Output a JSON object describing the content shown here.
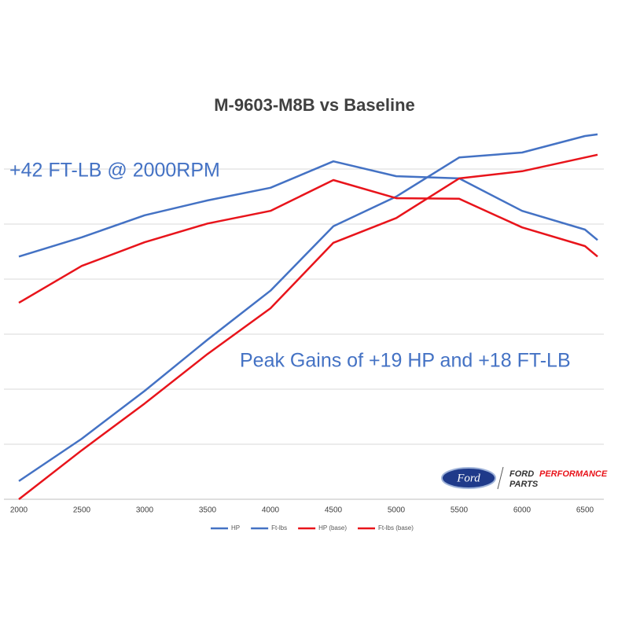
{
  "chart_data": {
    "type": "line",
    "title": "M-9603-M8B vs Baseline",
    "annotations": [
      "+42 FT-LB @ 2000RPM",
      "Peak Gains of +19 HP and +18 FT-LB"
    ],
    "x": [
      2000,
      2500,
      3000,
      3500,
      4000,
      4500,
      5000,
      5500,
      6000,
      6500,
      6600
    ],
    "xlim": [
      2000,
      6650
    ],
    "xticks": [
      2000,
      2500,
      3000,
      3500,
      4000,
      4500,
      5000,
      5500,
      6000,
      6500
    ],
    "ylim": [
      0,
      7
    ],
    "yticks": [
      0,
      1,
      2,
      3,
      4,
      5,
      6
    ],
    "ytick_labels": false,
    "grid": true,
    "legend": "bottom",
    "series": [
      {
        "name": "HP",
        "color": "#4472c4",
        "values": [
          0.33,
          1.1,
          1.97,
          2.9,
          3.79,
          4.96,
          5.5,
          6.21,
          6.3,
          6.6,
          6.63
        ]
      },
      {
        "name": "Ft-lbs",
        "color": "#4472c4",
        "values": [
          4.41,
          4.76,
          5.16,
          5.43,
          5.66,
          6.14,
          5.87,
          5.83,
          5.24,
          4.9,
          4.71
        ]
      },
      {
        "name": "HP (base)",
        "color": "#e8141b",
        "values": [
          0,
          0.89,
          1.74,
          2.64,
          3.47,
          4.66,
          5.11,
          5.83,
          5.96,
          6.21,
          6.26
        ]
      },
      {
        "name": "Ft-lbs (base)",
        "color": "#e8141b",
        "values": [
          3.57,
          4.24,
          4.67,
          5.01,
          5.24,
          5.8,
          5.47,
          5.46,
          4.94,
          4.6,
          4.41
        ]
      }
    ]
  },
  "logo": {
    "oval": "Ford",
    "brand": "FORD",
    "line1": "PERFORMANCE",
    "line2": "PARTS"
  }
}
